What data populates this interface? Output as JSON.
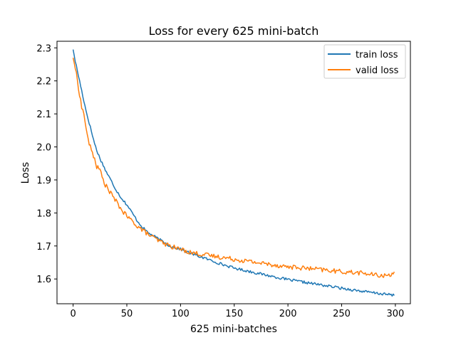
{
  "chart_data": {
    "type": "line",
    "title": "Loss for every 625 mini-batch",
    "xlabel": "625 mini-batches",
    "ylabel": "Loss",
    "xlim": [
      -15,
      314
    ],
    "ylim": [
      1.525,
      1.32
    ],
    "x_ticks": [
      0,
      50,
      100,
      150,
      200,
      250,
      300
    ],
    "y_ticks": [
      1.6,
      1.7,
      1.8,
      1.9,
      2.0,
      2.1,
      2.2,
      2.3
    ],
    "y_tick_labels": [
      "1.6",
      "1.7",
      "1.8",
      "1.9",
      "2.0",
      "2.1",
      "2.2",
      "2.3"
    ],
    "legend": {
      "position": "upper-right"
    },
    "grid": false,
    "series": [
      {
        "name": "train loss",
        "color": "#1f77b4",
        "anchors": [
          [
            0,
            2.295
          ],
          [
            2,
            2.26
          ],
          [
            4,
            2.23
          ],
          [
            6,
            2.2
          ],
          [
            8,
            2.17
          ],
          [
            10,
            2.14
          ],
          [
            12,
            2.11
          ],
          [
            14,
            2.085
          ],
          [
            16,
            2.06
          ],
          [
            18,
            2.035
          ],
          [
            20,
            2.01
          ],
          [
            22,
            1.99
          ],
          [
            25,
            1.965
          ],
          [
            28,
            1.945
          ],
          [
            30,
            1.93
          ],
          [
            35,
            1.9
          ],
          [
            40,
            1.87
          ],
          [
            45,
            1.845
          ],
          [
            50,
            1.825
          ],
          [
            55,
            1.8
          ],
          [
            60,
            1.775
          ],
          [
            65,
            1.755
          ],
          [
            70,
            1.74
          ],
          [
            80,
            1.72
          ],
          [
            90,
            1.7
          ],
          [
            100,
            1.69
          ],
          [
            110,
            1.677
          ],
          [
            125,
            1.66
          ],
          [
            140,
            1.643
          ],
          [
            150,
            1.633
          ],
          [
            175,
            1.615
          ],
          [
            200,
            1.598
          ],
          [
            225,
            1.585
          ],
          [
            250,
            1.572
          ],
          [
            275,
            1.56
          ],
          [
            290,
            1.554
          ],
          [
            299,
            1.551
          ]
        ],
        "noise": 0.004
      },
      {
        "name": "valid loss",
        "color": "#ff7f0e",
        "anchors": [
          [
            0,
            2.27
          ],
          [
            2,
            2.24
          ],
          [
            4,
            2.2
          ],
          [
            6,
            2.16
          ],
          [
            8,
            2.12
          ],
          [
            10,
            2.1
          ],
          [
            12,
            2.06
          ],
          [
            14,
            2.02
          ],
          [
            16,
            2.0
          ],
          [
            18,
            1.98
          ],
          [
            20,
            1.965
          ],
          [
            22,
            1.94
          ],
          [
            25,
            1.93
          ],
          [
            28,
            1.9
          ],
          [
            30,
            1.885
          ],
          [
            35,
            1.86
          ],
          [
            40,
            1.835
          ],
          [
            45,
            1.81
          ],
          [
            50,
            1.79
          ],
          [
            55,
            1.775
          ],
          [
            60,
            1.76
          ],
          [
            70,
            1.735
          ],
          [
            80,
            1.715
          ],
          [
            90,
            1.7
          ],
          [
            100,
            1.69
          ],
          [
            110,
            1.68
          ],
          [
            125,
            1.672
          ],
          [
            140,
            1.665
          ],
          [
            150,
            1.66
          ],
          [
            175,
            1.648
          ],
          [
            200,
            1.637
          ],
          [
            225,
            1.63
          ],
          [
            250,
            1.622
          ],
          [
            270,
            1.618
          ],
          [
            280,
            1.612
          ],
          [
            290,
            1.61
          ],
          [
            295,
            1.612
          ],
          [
            298,
            1.62
          ],
          [
            299,
            1.628
          ]
        ],
        "noise": 0.007
      }
    ]
  }
}
